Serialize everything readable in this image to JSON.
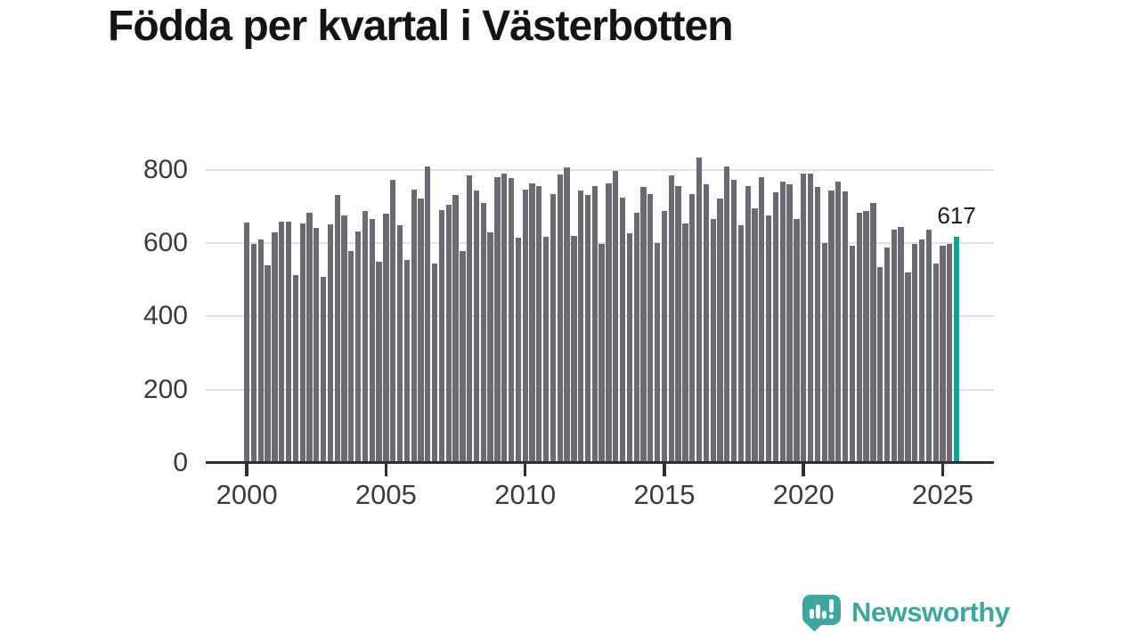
{
  "title": "Födda per kvartal i Västerbotten",
  "annotation": {
    "label": "617"
  },
  "branding": {
    "name": "Newsworthy",
    "icon": "newsworthy-speech-bubble-bar-chart-icon"
  },
  "colors": {
    "bar": "#6a6a72",
    "highlight": "#0ea39a",
    "grid": "#e1e1e1",
    "axis": "#2f2f2f",
    "tick_label": "#3a3a3a",
    "title": "#141414",
    "logo": "#3ea69e"
  },
  "chart_data": {
    "type": "bar",
    "title": "Födda per kvartal i Västerbotten",
    "xlabel": "",
    "ylabel": "",
    "frequency": "quarterly",
    "x_start": "2000Q1",
    "x_end": "2025Q3",
    "ylim": [
      0,
      860
    ],
    "grid": "horizontal",
    "legend": "none",
    "highlight_last_bar": true,
    "last_value_label": "617",
    "y_ticks": [
      0,
      200,
      400,
      600,
      800
    ],
    "y_tick_labels": [
      "0",
      "200",
      "400",
      "600",
      "800"
    ],
    "x_tick_labels": [
      "2000",
      "2005",
      "2010",
      "2015",
      "2020",
      "2025"
    ],
    "x_tick_indices": [
      0,
      20,
      40,
      60,
      80,
      100
    ],
    "x": [
      "2000Q1",
      "2000Q2",
      "2000Q3",
      "2000Q4",
      "2001Q1",
      "2001Q2",
      "2001Q3",
      "2001Q4",
      "2002Q1",
      "2002Q2",
      "2002Q3",
      "2002Q4",
      "2003Q1",
      "2003Q2",
      "2003Q3",
      "2003Q4",
      "2004Q1",
      "2004Q2",
      "2004Q3",
      "2004Q4",
      "2005Q1",
      "2005Q2",
      "2005Q3",
      "2005Q4",
      "2006Q1",
      "2006Q2",
      "2006Q3",
      "2006Q4",
      "2007Q1",
      "2007Q2",
      "2007Q3",
      "2007Q4",
      "2008Q1",
      "2008Q2",
      "2008Q3",
      "2008Q4",
      "2009Q1",
      "2009Q2",
      "2009Q3",
      "2009Q4",
      "2010Q1",
      "2010Q2",
      "2010Q3",
      "2010Q4",
      "2011Q1",
      "2011Q2",
      "2011Q3",
      "2011Q4",
      "2012Q1",
      "2012Q2",
      "2012Q3",
      "2012Q4",
      "2013Q1",
      "2013Q2",
      "2013Q3",
      "2013Q4",
      "2014Q1",
      "2014Q2",
      "2014Q3",
      "2014Q4",
      "2015Q1",
      "2015Q2",
      "2015Q3",
      "2015Q4",
      "2016Q1",
      "2016Q2",
      "2016Q3",
      "2016Q4",
      "2017Q1",
      "2017Q2",
      "2017Q3",
      "2017Q4",
      "2018Q1",
      "2018Q2",
      "2018Q3",
      "2018Q4",
      "2019Q1",
      "2019Q2",
      "2019Q3",
      "2019Q4",
      "2020Q1",
      "2020Q2",
      "2020Q3",
      "2020Q4",
      "2021Q1",
      "2021Q2",
      "2021Q3",
      "2021Q4",
      "2022Q1",
      "2022Q2",
      "2022Q3",
      "2022Q4",
      "2023Q1",
      "2023Q2",
      "2023Q3",
      "2023Q4",
      "2024Q1",
      "2024Q2",
      "2024Q3",
      "2024Q4",
      "2025Q1",
      "2025Q2",
      "2025Q3"
    ],
    "values": [
      656,
      598,
      610,
      540,
      630,
      659,
      659,
      513,
      655,
      684,
      642,
      509,
      652,
      731,
      675,
      578,
      633,
      687,
      667,
      550,
      681,
      774,
      650,
      555,
      747,
      722,
      810,
      545,
      691,
      705,
      731,
      579,
      784,
      743,
      709,
      629,
      780,
      790,
      778,
      614,
      747,
      764,
      755,
      618,
      733,
      788,
      808,
      620,
      745,
      731,
      757,
      598,
      764,
      798,
      725,
      628,
      684,
      753,
      733,
      600,
      689,
      784,
      757,
      655,
      733,
      834,
      762,
      667,
      722,
      810,
      774,
      648,
      757,
      695,
      781,
      676,
      739,
      769,
      760,
      667,
      790,
      790,
      753,
      600,
      745,
      768,
      741,
      594,
      684,
      688,
      709,
      535,
      589,
      636,
      644,
      520,
      599,
      609,
      638,
      544,
      593,
      599,
      617
    ]
  }
}
